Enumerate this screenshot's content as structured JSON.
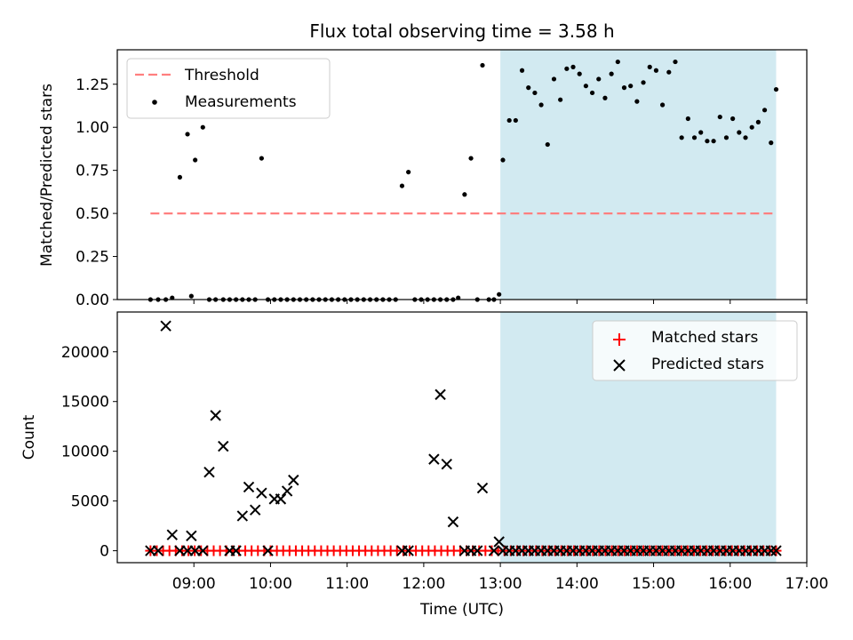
{
  "title": "Flux total observing time = 3.58 h",
  "colors": {
    "threshold": "#ff7f7f",
    "measurement": "#000000",
    "matched": "#ff0000",
    "predicted": "#000000",
    "highlight": "#add8e6"
  },
  "chart_data": [
    {
      "type": "scatter",
      "name": "ratio-panel",
      "ylabel": "Matched/Predicted stars",
      "xlabel": "",
      "xlim": [
        "08:00",
        "17:00"
      ],
      "ylim": [
        0,
        1.45
      ],
      "yticks": [
        0.0,
        0.25,
        0.5,
        0.75,
        1.0,
        1.25
      ],
      "ytick_labels": [
        "0.00",
        "0.25",
        "0.50",
        "0.75",
        "1.00",
        "1.25"
      ],
      "highlight_span": [
        "13:00",
        "16:36"
      ],
      "threshold": {
        "value": 0.5,
        "x_start": "08:26",
        "x_end": "16:36"
      },
      "legend": {
        "position": "top-left",
        "entries": [
          "Threshold",
          "Measurements"
        ]
      },
      "series": [
        {
          "name": "Measurements",
          "points": [
            [
              "08:26",
              0.0
            ],
            [
              "08:32",
              0.0
            ],
            [
              "08:38",
              0.0
            ],
            [
              "08:43",
              0.01
            ],
            [
              "08:49",
              0.71
            ],
            [
              "08:55",
              0.96
            ],
            [
              "08:58",
              0.02
            ],
            [
              "09:01",
              0.81
            ],
            [
              "09:07",
              1.0
            ],
            [
              "09:12",
              0.0
            ],
            [
              "09:17",
              0.0
            ],
            [
              "09:23",
              0.0
            ],
            [
              "09:28",
              0.0
            ],
            [
              "09:33",
              0.0
            ],
            [
              "09:38",
              0.0
            ],
            [
              "09:43",
              0.0
            ],
            [
              "09:48",
              0.0
            ],
            [
              "09:53",
              0.82
            ],
            [
              "09:58",
              0.0
            ],
            [
              "10:03",
              0.0
            ],
            [
              "10:08",
              0.0
            ],
            [
              "10:13",
              0.0
            ],
            [
              "10:18",
              0.0
            ],
            [
              "10:23",
              0.0
            ],
            [
              "10:28",
              0.0
            ],
            [
              "10:33",
              0.0
            ],
            [
              "10:38",
              0.0
            ],
            [
              "10:43",
              0.0
            ],
            [
              "10:48",
              0.0
            ],
            [
              "10:53",
              0.0
            ],
            [
              "10:58",
              0.0
            ],
            [
              "11:03",
              0.0
            ],
            [
              "11:08",
              0.0
            ],
            [
              "11:13",
              0.0
            ],
            [
              "11:18",
              0.0
            ],
            [
              "11:23",
              0.0
            ],
            [
              "11:28",
              0.0
            ],
            [
              "11:33",
              0.0
            ],
            [
              "11:38",
              0.0
            ],
            [
              "11:43",
              0.66
            ],
            [
              "11:48",
              0.74
            ],
            [
              "11:53",
              0.0
            ],
            [
              "11:58",
              0.0
            ],
            [
              "12:03",
              0.0
            ],
            [
              "12:08",
              0.0
            ],
            [
              "12:13",
              0.0
            ],
            [
              "12:18",
              0.0
            ],
            [
              "12:23",
              0.0
            ],
            [
              "12:27",
              0.01
            ],
            [
              "12:32",
              0.61
            ],
            [
              "12:37",
              0.82
            ],
            [
              "12:42",
              0.0
            ],
            [
              "12:46",
              1.36
            ],
            [
              "12:51",
              0.0
            ],
            [
              "12:55",
              0.0
            ],
            [
              "12:59",
              0.03
            ],
            [
              "13:02",
              0.81
            ],
            [
              "13:07",
              1.04
            ],
            [
              "13:12",
              1.04
            ],
            [
              "13:17",
              1.33
            ],
            [
              "13:22",
              1.23
            ],
            [
              "13:27",
              1.2
            ],
            [
              "13:32",
              1.13
            ],
            [
              "13:37",
              0.9
            ],
            [
              "13:42",
              1.28
            ],
            [
              "13:47",
              1.16
            ],
            [
              "13:52",
              1.34
            ],
            [
              "13:57",
              1.35
            ],
            [
              "14:02",
              1.31
            ],
            [
              "14:07",
              1.24
            ],
            [
              "14:12",
              1.2
            ],
            [
              "14:17",
              1.28
            ],
            [
              "14:22",
              1.17
            ],
            [
              "14:27",
              1.31
            ],
            [
              "14:32",
              1.38
            ],
            [
              "14:37",
              1.23
            ],
            [
              "14:42",
              1.24
            ],
            [
              "14:47",
              1.15
            ],
            [
              "14:52",
              1.26
            ],
            [
              "14:57",
              1.35
            ],
            [
              "15:02",
              1.33
            ],
            [
              "15:07",
              1.13
            ],
            [
              "15:12",
              1.32
            ],
            [
              "15:17",
              1.38
            ],
            [
              "15:22",
              0.94
            ],
            [
              "15:27",
              1.05
            ],
            [
              "15:32",
              0.94
            ],
            [
              "15:37",
              0.97
            ],
            [
              "15:42",
              0.92
            ],
            [
              "15:47",
              0.92
            ],
            [
              "15:52",
              1.06
            ],
            [
              "15:57",
              0.94
            ],
            [
              "16:02",
              1.05
            ],
            [
              "16:07",
              0.97
            ],
            [
              "16:12",
              0.94
            ],
            [
              "16:17",
              1.0
            ],
            [
              "16:22",
              1.03
            ],
            [
              "16:27",
              1.1
            ],
            [
              "16:32",
              0.91
            ],
            [
              "16:36",
              1.22
            ]
          ]
        }
      ]
    },
    {
      "type": "scatter",
      "name": "count-panel",
      "ylabel": "Count",
      "xlabel": "Time (UTC)",
      "xlim": [
        "08:00",
        "17:00"
      ],
      "ylim": [
        -1200,
        24000
      ],
      "yticks": [
        0,
        5000,
        10000,
        15000,
        20000
      ],
      "ytick_labels": [
        "0",
        "5000",
        "10000",
        "15000",
        "20000"
      ],
      "xticks": [
        "09:00",
        "10:00",
        "11:00",
        "12:00",
        "13:00",
        "14:00",
        "15:00",
        "16:00",
        "17:00"
      ],
      "highlight_span": [
        "13:00",
        "16:36"
      ],
      "legend": {
        "position": "top-right",
        "entries": [
          "Matched stars",
          "Predicted stars"
        ]
      },
      "series": [
        {
          "name": "Matched stars",
          "marker": "plus",
          "x_start": "08:26",
          "x_end": "16:36",
          "count": 100,
          "value": 0
        },
        {
          "name": "Predicted stars",
          "marker": "x",
          "points": [
            [
              "08:26",
              0
            ],
            [
              "08:32",
              0
            ],
            [
              "08:38",
              22600
            ],
            [
              "08:43",
              1600
            ],
            [
              "08:49",
              0
            ],
            [
              "08:55",
              0
            ],
            [
              "08:58",
              1500
            ],
            [
              "09:01",
              0
            ],
            [
              "09:07",
              0
            ],
            [
              "09:12",
              7900
            ],
            [
              "09:17",
              13600
            ],
            [
              "09:23",
              10500
            ],
            [
              "09:28",
              0
            ],
            [
              "09:33",
              0
            ],
            [
              "09:38",
              3500
            ],
            [
              "09:43",
              6400
            ],
            [
              "09:48",
              4100
            ],
            [
              "09:53",
              5800
            ],
            [
              "09:58",
              0
            ],
            [
              "10:03",
              5200
            ],
            [
              "10:08",
              5200
            ],
            [
              "10:13",
              6000
            ],
            [
              "10:18",
              7100
            ],
            [
              "11:43",
              0
            ],
            [
              "11:48",
              0
            ],
            [
              "12:08",
              9200
            ],
            [
              "12:13",
              15700
            ],
            [
              "12:18",
              8700
            ],
            [
              "12:23",
              2900
            ],
            [
              "12:32",
              0
            ],
            [
              "12:37",
              0
            ],
            [
              "12:42",
              0
            ],
            [
              "12:46",
              6300
            ],
            [
              "12:55",
              0
            ],
            [
              "12:59",
              900
            ],
            [
              "13:02",
              0
            ],
            [
              "13:07",
              0
            ],
            [
              "13:12",
              0
            ],
            [
              "13:17",
              0
            ],
            [
              "13:22",
              0
            ],
            [
              "13:27",
              0
            ],
            [
              "13:32",
              0
            ],
            [
              "13:37",
              0
            ],
            [
              "13:42",
              0
            ],
            [
              "13:47",
              0
            ],
            [
              "13:52",
              0
            ],
            [
              "13:57",
              0
            ],
            [
              "14:02",
              0
            ],
            [
              "14:07",
              0
            ],
            [
              "14:12",
              0
            ],
            [
              "14:17",
              0
            ],
            [
              "14:22",
              0
            ],
            [
              "14:27",
              0
            ],
            [
              "14:32",
              0
            ],
            [
              "14:37",
              0
            ],
            [
              "14:42",
              0
            ],
            [
              "14:47",
              0
            ],
            [
              "14:52",
              0
            ],
            [
              "14:57",
              0
            ],
            [
              "15:02",
              0
            ],
            [
              "15:07",
              0
            ],
            [
              "15:12",
              0
            ],
            [
              "15:17",
              0
            ],
            [
              "15:22",
              0
            ],
            [
              "15:27",
              0
            ],
            [
              "15:32",
              0
            ],
            [
              "15:37",
              0
            ],
            [
              "15:42",
              0
            ],
            [
              "15:47",
              0
            ],
            [
              "15:52",
              0
            ],
            [
              "15:57",
              0
            ],
            [
              "16:02",
              0
            ],
            [
              "16:07",
              0
            ],
            [
              "16:12",
              0
            ],
            [
              "16:17",
              0
            ],
            [
              "16:22",
              0
            ],
            [
              "16:27",
              0
            ],
            [
              "16:32",
              0
            ],
            [
              "16:36",
              0
            ]
          ]
        }
      ]
    }
  ]
}
